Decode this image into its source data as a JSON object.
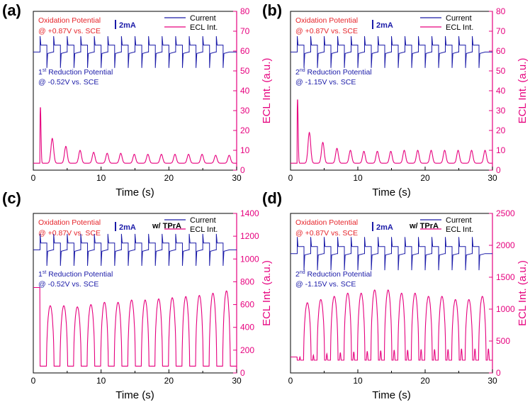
{
  "chart_data": [
    {
      "type": "line",
      "panel": "(a)",
      "xlabel": "Time (s)",
      "ylabel": "ECL Int. (a.u.)",
      "xlim": [
        0,
        30
      ],
      "ylim": [
        0,
        80
      ],
      "xticks": [
        0,
        10,
        20,
        30
      ],
      "yticks": [
        0,
        10,
        20,
        30,
        40,
        50,
        60,
        70,
        80
      ],
      "oxidation_title": "Oxidation Potential",
      "oxidation_value": "@ +0.87V vs. SCE",
      "reduction_ord": "1",
      "reduction_sup": "st",
      "reduction_rest": " Reduction Potential",
      "reduction_value": "@ -0.52V vs. SCE",
      "scale_bar": "2mA",
      "tpra": "",
      "legend": [
        "Current",
        "ECL Int."
      ],
      "series": [
        {
          "name": "Current",
          "color": "#1a1aa8",
          "offset_units": 59.5,
          "step_units": 3.5,
          "spike_units": 8
        },
        {
          "name": "ECL Int.",
          "color": "#e6007e",
          "baseline": 3.5,
          "onset_s": 1.0,
          "x": [
            1.05,
            2.8,
            4.8,
            6.9,
            8.9,
            10.9,
            12.9,
            14.9,
            16.9,
            18.9,
            20.9,
            22.9,
            24.9,
            26.9,
            28.9
          ],
          "values": [
            32,
            16,
            12,
            10,
            9,
            8.5,
            8.5,
            8,
            8,
            8,
            8,
            8,
            8,
            7.5,
            7.5
          ]
        }
      ]
    },
    {
      "type": "line",
      "panel": "(b)",
      "xlabel": "Time (s)",
      "ylabel": "ECL Int. (a.u.)",
      "xlim": [
        0,
        30
      ],
      "ylim": [
        0,
        80
      ],
      "xticks": [
        0,
        10,
        20,
        30
      ],
      "yticks": [
        0,
        10,
        20,
        30,
        40,
        50,
        60,
        70,
        80
      ],
      "oxidation_title": "Oxidation Potential",
      "oxidation_value": "@ +0.87V vs. SCE",
      "reduction_ord": "2",
      "reduction_sup": "nd",
      "reduction_rest": " Reduction Potential",
      "reduction_value": "@ -1.15V vs. SCE",
      "scale_bar": "2mA",
      "tpra": "",
      "legend": [
        "Current",
        "ECL Int."
      ],
      "series": [
        {
          "name": "Current",
          "color": "#1a1aa8",
          "offset_units": 59.5,
          "step_units": 3.5,
          "spike_units": 8
        },
        {
          "name": "ECL Int.",
          "color": "#e6007e",
          "baseline": 3.5,
          "onset_s": 1.0,
          "x": [
            1.05,
            2.8,
            4.8,
            6.9,
            8.9,
            10.9,
            12.9,
            14.9,
            16.9,
            18.9,
            20.9,
            22.9,
            24.9,
            26.9,
            28.9
          ],
          "values": [
            36,
            19,
            14,
            11,
            10,
            9.5,
            9.5,
            9.5,
            10,
            10,
            10,
            10,
            10,
            10,
            10
          ]
        }
      ]
    },
    {
      "type": "line",
      "panel": "(c)",
      "xlabel": "Time (s)",
      "ylabel": "ECL Int. (a.u.)",
      "xlim": [
        0,
        30
      ],
      "ylim": [
        0,
        1400
      ],
      "xticks": [
        0,
        10,
        20,
        30
      ],
      "yticks": [
        0,
        200,
        400,
        600,
        800,
        1000,
        1200,
        1400
      ],
      "oxidation_title": "Oxidation Potential",
      "oxidation_value": "@ +0.87V vs. SCE",
      "reduction_ord": "1",
      "reduction_sup": "st",
      "reduction_rest": " Reduction Potential",
      "reduction_value": "@ -0.52V vs. SCE",
      "scale_bar": "2mA",
      "tpra": "w/ TPrA",
      "legend": [
        "Current",
        "ECL Int."
      ],
      "series": [
        {
          "name": "Current",
          "color": "#1a1aa8",
          "offset_units": 1080,
          "step_units": 60,
          "spike_units": 140
        },
        {
          "name": "ECL Int.",
          "color": "#e6007e",
          "baseline": 60,
          "initial_level": 750,
          "x": [
            2.5,
            4.5,
            6.5,
            8.5,
            10.5,
            12.5,
            14.5,
            16.5,
            18.5,
            20.5,
            22.5,
            24.5,
            26.5,
            28.5
          ],
          "values": [
            590,
            590,
            580,
            600,
            620,
            620,
            640,
            640,
            650,
            660,
            670,
            680,
            700,
            720
          ]
        }
      ]
    },
    {
      "type": "line",
      "panel": "(d)",
      "xlabel": "Time (s)",
      "ylabel": "ECL Int. (a.u.)",
      "xlim": [
        0,
        30
      ],
      "ylim": [
        0,
        2500
      ],
      "xticks": [
        0,
        10,
        20,
        30
      ],
      "yticks": [
        0,
        500,
        1000,
        1500,
        2000,
        2500
      ],
      "oxidation_title": "Oxidation Potential",
      "oxidation_value": "@ +0.87V vs. SCE",
      "reduction_ord": "2",
      "reduction_sup": "nd",
      "reduction_rest": " Reduction Potential",
      "reduction_value": "@ -1.15V vs. SCE",
      "scale_bar": "2mA",
      "tpra": "w/ TPrA",
      "legend": [
        "Current",
        "ECL Int."
      ],
      "series": [
        {
          "name": "Current",
          "color": "#1a1aa8",
          "offset_units": 1870,
          "step_units": 110,
          "spike_units": 260
        },
        {
          "name": "ECL Int.",
          "color": "#e6007e",
          "baseline": 200,
          "initial_level": 250,
          "x": [
            2.5,
            4.5,
            6.5,
            8.5,
            10.5,
            12.5,
            14.5,
            16.5,
            18.5,
            20.5,
            22.5,
            24.5,
            26.5,
            28.5
          ],
          "values": [
            1100,
            1150,
            1200,
            1250,
            1250,
            1300,
            1300,
            1250,
            1250,
            1200,
            1200,
            1150,
            1150,
            1200
          ],
          "minor_x": [
            1.4,
            3.4,
            5.4,
            7.4,
            9.4,
            11.4,
            13.4,
            15.4,
            17.4,
            19.4,
            21.4,
            23.4,
            25.4,
            27.4,
            29.4
          ],
          "minor_values": [
            250,
            280,
            300,
            320,
            330,
            340,
            350,
            360,
            360,
            370,
            370,
            370,
            380,
            380,
            380
          ]
        }
      ]
    }
  ]
}
